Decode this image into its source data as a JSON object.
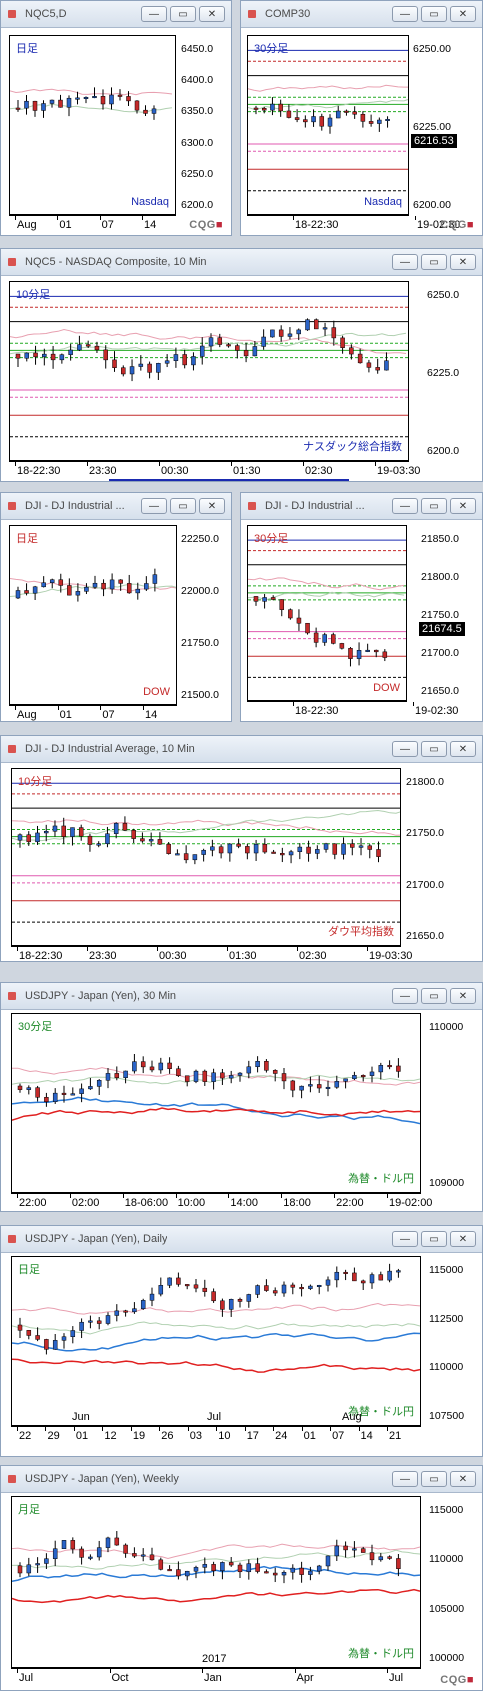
{
  "colors": {
    "up": "#2a63c7",
    "down": "#c42a2a",
    "blue_label": "#1a2ab0",
    "red_label": "#c42a2a",
    "green_label": "#1e8a2a"
  },
  "panels": [
    {
      "title": "NQC5,D",
      "label": "日足",
      "label_color": "#1a2ab0",
      "name_label": "Nasdaq",
      "name_color": "#1a2ab0",
      "yticks": [
        "6450.0",
        "6400.0",
        "6350.0",
        "6300.0",
        "6250.0",
        "6200.0"
      ],
      "xticks": [
        "Aug",
        "01",
        "07",
        "14"
      ],
      "logo": true,
      "last": ""
    },
    {
      "title": "COMP30",
      "label": "30分足",
      "label_color": "#1a2ab0",
      "name_label": "Nasdaq",
      "name_color": "#1a2ab0",
      "yticks": [
        "6250.00",
        "6225.00",
        "6200.00"
      ],
      "xticks": [
        "18-22:30",
        "19-02:30"
      ],
      "logo": true,
      "last": "6216.53"
    },
    {
      "title": "NQC5 - NASDAQ Composite, 10 Min",
      "label": "10分足",
      "label_color": "#1a2ab0",
      "name_label": "ナスダック総合指数",
      "name_color": "#1a2ab0",
      "yticks": [
        "6250.0",
        "6225.0",
        "6200.0"
      ],
      "xticks": [
        "18-22:30",
        "23:30",
        "00:30",
        "01:30",
        "02:30",
        "19-03:30"
      ],
      "logo": false,
      "last": ""
    },
    {
      "title": "DJI - DJ Industrial ...",
      "label": "日足",
      "label_color": "#c42a2a",
      "name_label": "DOW",
      "name_color": "#c42a2a",
      "yticks": [
        "22250.0",
        "22000.0",
        "21750.0",
        "21500.0"
      ],
      "xticks": [
        "Aug",
        "01",
        "07",
        "14"
      ],
      "logo": false,
      "last": ""
    },
    {
      "title": "DJI - DJ Industrial ...",
      "label": "30分足",
      "label_color": "#c42a2a",
      "name_label": "DOW",
      "name_color": "#c42a2a",
      "yticks": [
        "21850.0",
        "21800.0",
        "21750.0",
        "21700.0",
        "21650.0"
      ],
      "xticks": [
        "18-22:30",
        "19-02:30"
      ],
      "logo": false,
      "last": "21674.5"
    },
    {
      "title": "DJI - DJ Industrial Average, 10 Min",
      "label": "10分足",
      "label_color": "#c42a2a",
      "name_label": "ダウ平均指数",
      "name_color": "#c42a2a",
      "yticks": [
        "21800.0",
        "21750.0",
        "21700.0",
        "21650.0"
      ],
      "xticks": [
        "18-22:30",
        "23:30",
        "00:30",
        "01:30",
        "02:30",
        "19-03:30"
      ],
      "logo": false,
      "last": ""
    },
    {
      "title": "USDJPY - Japan (Yen), 30 Min",
      "label": "30分足",
      "label_color": "#1e8a2a",
      "name_label": "為替・ドル円",
      "name_color": "#1e8a2a",
      "yticks": [
        "110000",
        "109000"
      ],
      "xticks": [
        "22:00",
        "02:00",
        "18-06:00",
        "10:00",
        "14:00",
        "18:00",
        "22:00",
        "19-02:00"
      ],
      "logo": false,
      "last": ""
    },
    {
      "title": "USDJPY - Japan (Yen), Daily",
      "label": "日足",
      "label_color": "#1e8a2a",
      "name_label": "為替・ドル円",
      "name_color": "#1e8a2a",
      "yticks": [
        "115000",
        "112500",
        "110000",
        "107500"
      ],
      "xticks": [
        "22",
        "29",
        "01",
        "12",
        "19",
        "26",
        "03",
        "10",
        "17",
        "24",
        "01",
        "07",
        "14",
        "21"
      ],
      "xsub": [
        "Jun",
        "Jul",
        "Aug"
      ],
      "logo": false,
      "last": ""
    },
    {
      "title": "USDJPY - Japan (Yen), Weekly",
      "label": "月足",
      "label_color": "#1e8a2a",
      "name_label": "為替・ドル円",
      "name_color": "#1e8a2a",
      "yticks": [
        "115000",
        "110000",
        "105000",
        "100000"
      ],
      "xticks": [
        "Jul",
        "Oct",
        "Jan",
        "Apr",
        "Jul"
      ],
      "xsub": [
        "2017"
      ],
      "logo": true,
      "last": ""
    }
  ],
  "window_buttons": {
    "minimize": "—",
    "restore": "▭",
    "close": "✕"
  },
  "logo_text": {
    "brand": "CQG",
    "mark": "■"
  }
}
